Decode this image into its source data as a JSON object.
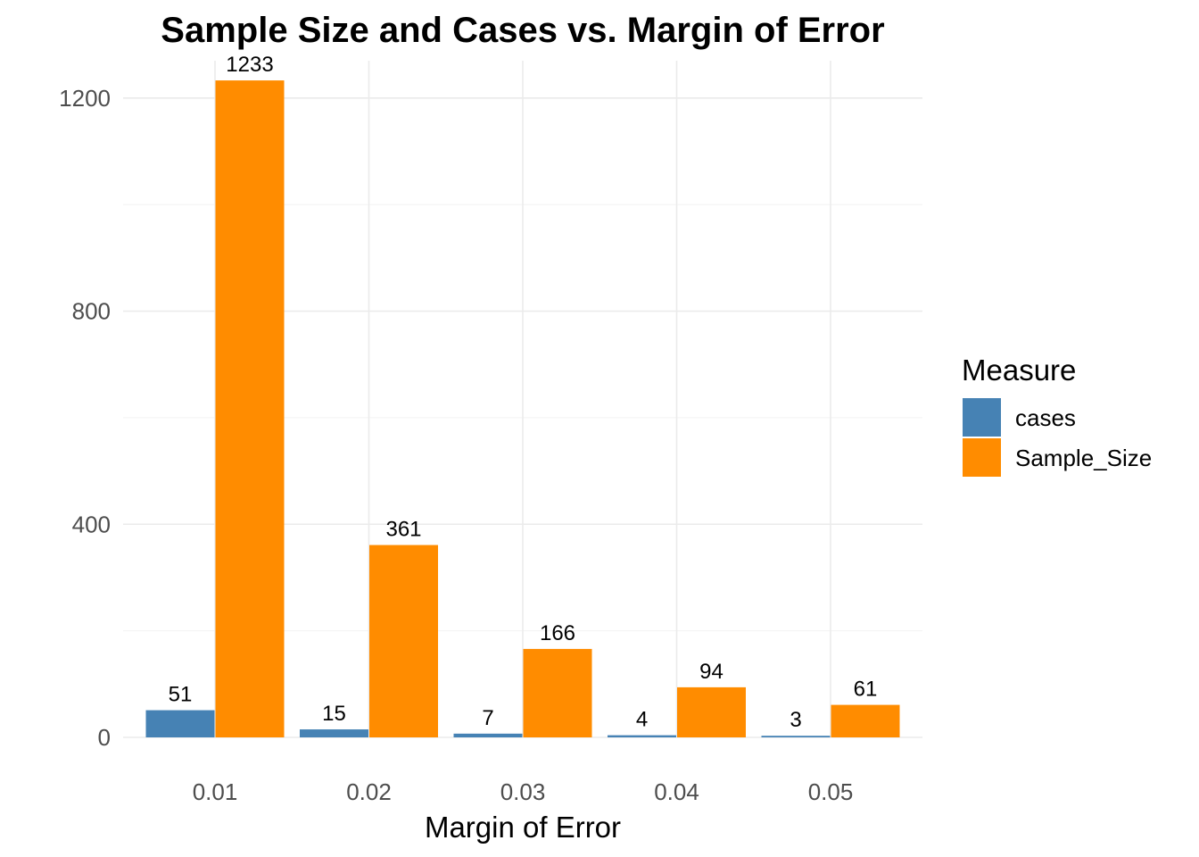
{
  "chart_data": {
    "type": "bar",
    "title": "Sample Size and Cases vs. Margin of Error",
    "xlabel": "Margin of Error",
    "ylabel": "",
    "categories": [
      "0.01",
      "0.02",
      "0.03",
      "0.04",
      "0.05"
    ],
    "series": [
      {
        "name": "cases",
        "color": "#4682B4",
        "values": [
          51,
          15,
          7,
          4,
          3
        ]
      },
      {
        "name": "Sample_Size",
        "color": "#FF8C00",
        "values": [
          1233,
          361,
          166,
          94,
          61
        ]
      }
    ],
    "ylim": [
      0,
      1270
    ],
    "yticks": [
      0,
      400,
      800,
      1200
    ],
    "ytick_labels": [
      "0",
      "400",
      "800",
      "1200"
    ],
    "grid": true,
    "legend": {
      "title": "Measure",
      "position": "right"
    }
  }
}
